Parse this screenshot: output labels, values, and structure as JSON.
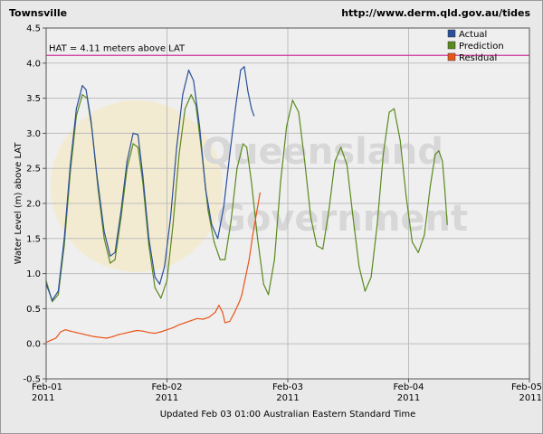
{
  "header": {
    "title": "Townsville",
    "url": "http://www.derm.qld.gov.au/tides"
  },
  "watermark": {
    "line1": "Queensland",
    "line2": "Government"
  },
  "footer": "Updated Feb 03 01:00 Australian Eastern Standard Time",
  "colors": {
    "actual": "#2b4f9a",
    "prediction": "#5a8a1e",
    "residual": "#e8541a",
    "hat": "#cc3399",
    "grid": "#bdbdbd",
    "plot_bg": "#efefef"
  },
  "chart_data": {
    "type": "line",
    "ylabel": "Water Level (m) above LAT",
    "ylim": [
      -0.5,
      4.5
    ],
    "yticks": [
      -0.5,
      0.0,
      0.5,
      1.0,
      1.5,
      2.0,
      2.5,
      3.0,
      3.5,
      4.0,
      4.5
    ],
    "ytick_labels": [
      "-0.5",
      "0.0",
      "0.5",
      "1.0",
      "1.5",
      "2.0",
      "2.5",
      "3.0",
      "3.5",
      "4.0",
      "4.5"
    ],
    "xlim": [
      0,
      4
    ],
    "x_unit": "days since Feb 01 2011 00:00",
    "xticks": [
      {
        "x": 0,
        "line1": "Feb-01",
        "line2": "2011"
      },
      {
        "x": 1,
        "line1": "Feb-02",
        "line2": "2011"
      },
      {
        "x": 2,
        "line1": "Feb-03",
        "line2": "2011"
      },
      {
        "x": 3,
        "line1": "Feb-04",
        "line2": "2011"
      },
      {
        "x": 4,
        "line1": "Feb-05",
        "line2": "2011"
      }
    ],
    "grid": true,
    "legend_position": "top-right",
    "hat": {
      "value": 4.11,
      "label": "HAT = 4.11 meters above LAT"
    },
    "series": [
      {
        "name": "Actual",
        "key": "actual",
        "points": [
          [
            0.0,
            0.85
          ],
          [
            0.05,
            0.62
          ],
          [
            0.1,
            0.75
          ],
          [
            0.15,
            1.5
          ],
          [
            0.2,
            2.55
          ],
          [
            0.25,
            3.35
          ],
          [
            0.3,
            3.68
          ],
          [
            0.33,
            3.62
          ],
          [
            0.37,
            3.2
          ],
          [
            0.42,
            2.4
          ],
          [
            0.48,
            1.6
          ],
          [
            0.53,
            1.25
          ],
          [
            0.57,
            1.3
          ],
          [
            0.62,
            1.9
          ],
          [
            0.67,
            2.6
          ],
          [
            0.72,
            3.0
          ],
          [
            0.76,
            2.98
          ],
          [
            0.8,
            2.4
          ],
          [
            0.85,
            1.5
          ],
          [
            0.9,
            0.95
          ],
          [
            0.94,
            0.85
          ],
          [
            0.98,
            1.1
          ],
          [
            1.03,
            1.8
          ],
          [
            1.08,
            2.8
          ],
          [
            1.13,
            3.55
          ],
          [
            1.18,
            3.9
          ],
          [
            1.22,
            3.75
          ],
          [
            1.27,
            3.1
          ],
          [
            1.32,
            2.2
          ],
          [
            1.37,
            1.7
          ],
          [
            1.42,
            1.5
          ],
          [
            1.47,
            1.95
          ],
          [
            1.52,
            2.7
          ],
          [
            1.57,
            3.4
          ],
          [
            1.61,
            3.9
          ],
          [
            1.64,
            3.95
          ],
          [
            1.67,
            3.6
          ],
          [
            1.7,
            3.35
          ],
          [
            1.72,
            3.25
          ]
        ]
      },
      {
        "name": "Prediction",
        "key": "prediction",
        "points": [
          [
            0.0,
            0.9
          ],
          [
            0.05,
            0.6
          ],
          [
            0.1,
            0.7
          ],
          [
            0.15,
            1.4
          ],
          [
            0.2,
            2.45
          ],
          [
            0.25,
            3.25
          ],
          [
            0.3,
            3.55
          ],
          [
            0.34,
            3.5
          ],
          [
            0.38,
            3.05
          ],
          [
            0.43,
            2.2
          ],
          [
            0.48,
            1.5
          ],
          [
            0.53,
            1.15
          ],
          [
            0.57,
            1.2
          ],
          [
            0.62,
            1.8
          ],
          [
            0.67,
            2.5
          ],
          [
            0.72,
            2.85
          ],
          [
            0.76,
            2.8
          ],
          [
            0.8,
            2.3
          ],
          [
            0.85,
            1.4
          ],
          [
            0.9,
            0.8
          ],
          [
            0.95,
            0.65
          ],
          [
            1.0,
            0.9
          ],
          [
            1.05,
            1.7
          ],
          [
            1.1,
            2.7
          ],
          [
            1.15,
            3.35
          ],
          [
            1.2,
            3.55
          ],
          [
            1.24,
            3.4
          ],
          [
            1.29,
            2.7
          ],
          [
            1.34,
            1.9
          ],
          [
            1.39,
            1.45
          ],
          [
            1.44,
            1.2
          ],
          [
            1.48,
            1.2
          ],
          [
            1.53,
            1.75
          ],
          [
            1.58,
            2.5
          ],
          [
            1.63,
            2.85
          ],
          [
            1.66,
            2.8
          ],
          [
            1.7,
            2.3
          ],
          [
            1.75,
            1.5
          ],
          [
            1.8,
            0.85
          ],
          [
            1.84,
            0.7
          ],
          [
            1.89,
            1.2
          ],
          [
            1.94,
            2.3
          ],
          [
            1.99,
            3.1
          ],
          [
            2.04,
            3.47
          ],
          [
            2.09,
            3.3
          ],
          [
            2.14,
            2.6
          ],
          [
            2.19,
            1.8
          ],
          [
            2.24,
            1.4
          ],
          [
            2.29,
            1.35
          ],
          [
            2.34,
            1.9
          ],
          [
            2.39,
            2.6
          ],
          [
            2.44,
            2.8
          ],
          [
            2.49,
            2.55
          ],
          [
            2.54,
            1.8
          ],
          [
            2.59,
            1.1
          ],
          [
            2.64,
            0.75
          ],
          [
            2.69,
            0.95
          ],
          [
            2.74,
            1.7
          ],
          [
            2.79,
            2.7
          ],
          [
            2.84,
            3.3
          ],
          [
            2.88,
            3.35
          ],
          [
            2.93,
            2.9
          ],
          [
            2.98,
            2.1
          ],
          [
            3.03,
            1.45
          ],
          [
            3.08,
            1.3
          ],
          [
            3.13,
            1.55
          ],
          [
            3.18,
            2.25
          ],
          [
            3.22,
            2.7
          ],
          [
            3.25,
            2.75
          ],
          [
            3.28,
            2.6
          ],
          [
            3.3,
            2.2
          ],
          [
            3.32,
            1.7
          ]
        ]
      },
      {
        "name": "Residual",
        "key": "residual",
        "points": [
          [
            0.0,
            0.02
          ],
          [
            0.04,
            0.05
          ],
          [
            0.08,
            0.08
          ],
          [
            0.12,
            0.17
          ],
          [
            0.16,
            0.2
          ],
          [
            0.2,
            0.18
          ],
          [
            0.25,
            0.16
          ],
          [
            0.3,
            0.14
          ],
          [
            0.35,
            0.12
          ],
          [
            0.4,
            0.1
          ],
          [
            0.45,
            0.09
          ],
          [
            0.5,
            0.08
          ],
          [
            0.55,
            0.1
          ],
          [
            0.6,
            0.13
          ],
          [
            0.65,
            0.15
          ],
          [
            0.7,
            0.17
          ],
          [
            0.75,
            0.19
          ],
          [
            0.8,
            0.18
          ],
          [
            0.85,
            0.16
          ],
          [
            0.9,
            0.15
          ],
          [
            0.95,
            0.17
          ],
          [
            1.0,
            0.2
          ],
          [
            1.05,
            0.23
          ],
          [
            1.1,
            0.27
          ],
          [
            1.15,
            0.3
          ],
          [
            1.2,
            0.33
          ],
          [
            1.25,
            0.36
          ],
          [
            1.3,
            0.35
          ],
          [
            1.35,
            0.38
          ],
          [
            1.4,
            0.45
          ],
          [
            1.43,
            0.55
          ],
          [
            1.46,
            0.45
          ],
          [
            1.48,
            0.3
          ],
          [
            1.52,
            0.32
          ],
          [
            1.56,
            0.45
          ],
          [
            1.6,
            0.6
          ],
          [
            1.62,
            0.7
          ],
          [
            1.65,
            0.95
          ],
          [
            1.68,
            1.2
          ],
          [
            1.71,
            1.55
          ],
          [
            1.74,
            1.85
          ],
          [
            1.77,
            2.15
          ]
        ]
      }
    ]
  }
}
